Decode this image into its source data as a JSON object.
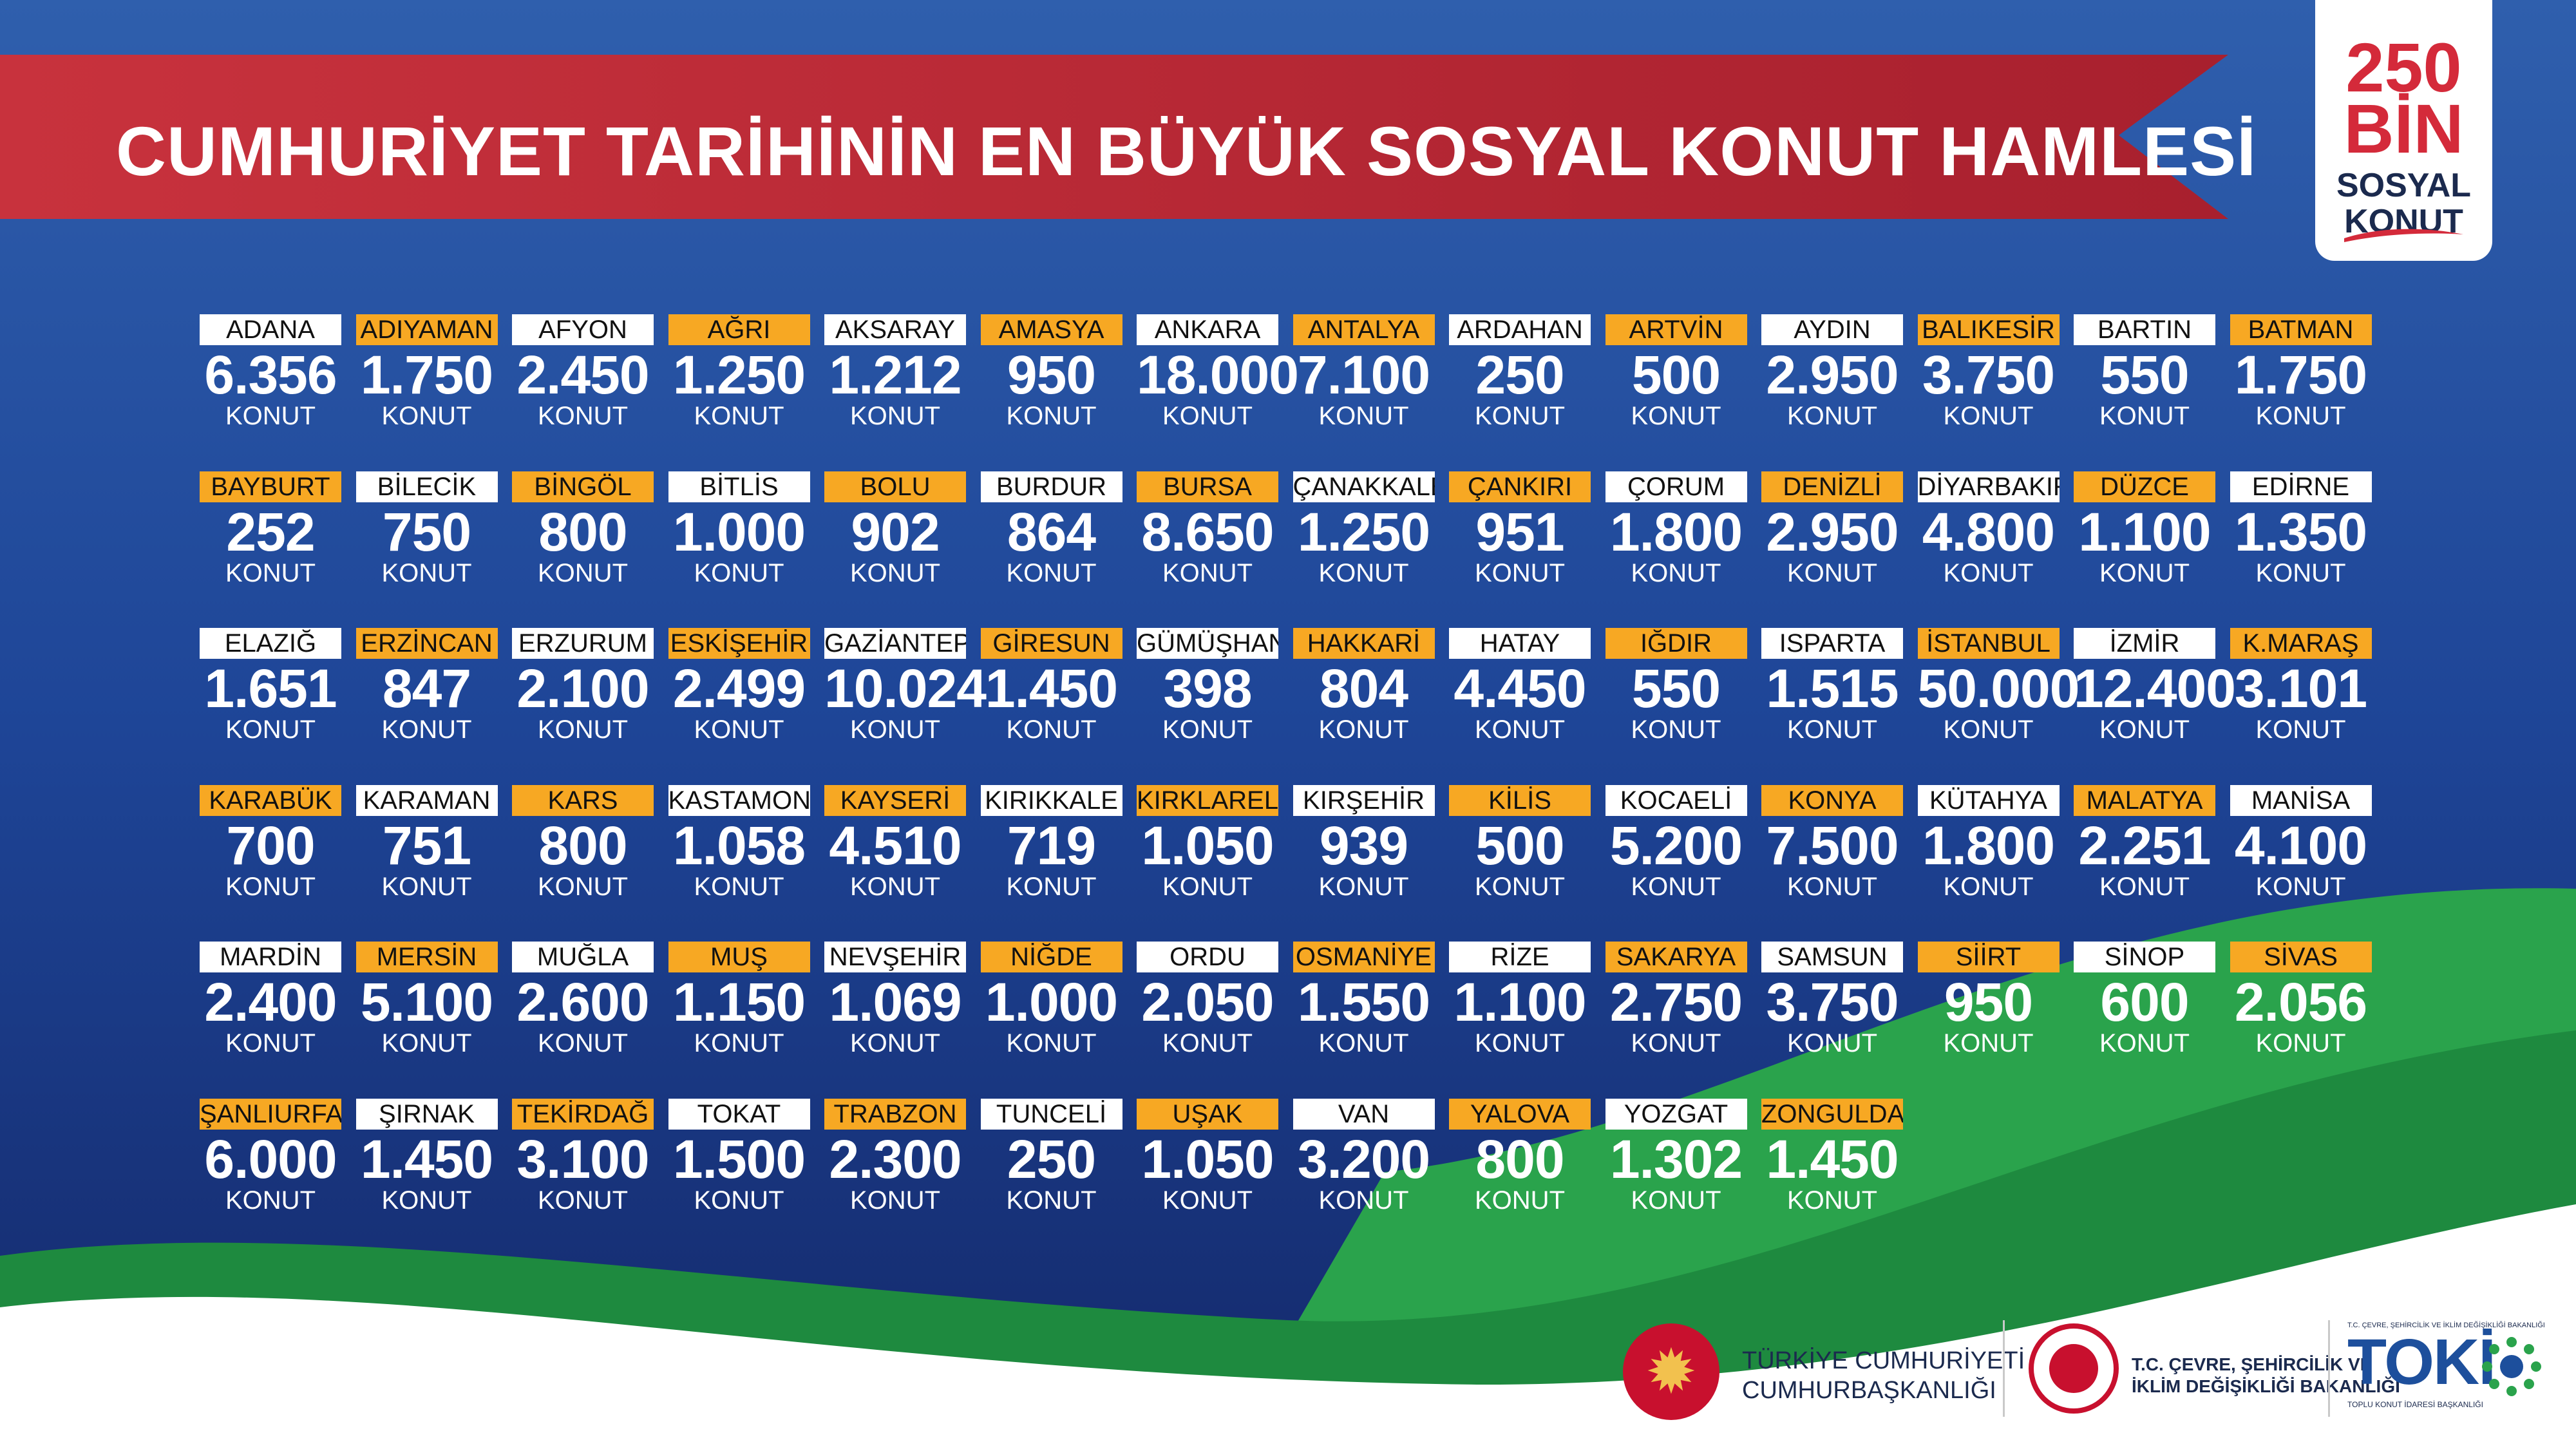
{
  "header": {
    "title": "CUMHURİYET TARİHİNİN EN BÜYÜK SOSYAL KONUT HAMLESİ"
  },
  "badge": {
    "line1": "250",
    "line2": "BİN",
    "line3": "SOSYAL",
    "line4": "KONUT"
  },
  "colors": {
    "background": "#1d3f93",
    "banner": "#c62f3b",
    "label_white": "#ffffff",
    "label_orange": "#f7a823",
    "green": "#2a9a4a"
  },
  "cities": [
    {
      "name": "ADANA",
      "value": "6.356",
      "unit": "KONUT",
      "tag": "w"
    },
    {
      "name": "ADIYAMAN",
      "value": "1.750",
      "unit": "KONUT",
      "tag": "o"
    },
    {
      "name": "AFYON",
      "value": "2.450",
      "unit": "KONUT",
      "tag": "w"
    },
    {
      "name": "AĞRI",
      "value": "1.250",
      "unit": "KONUT",
      "tag": "o"
    },
    {
      "name": "AKSARAY",
      "value": "1.212",
      "unit": "KONUT",
      "tag": "w"
    },
    {
      "name": "AMASYA",
      "value": "950",
      "unit": "KONUT",
      "tag": "o"
    },
    {
      "name": "ANKARA",
      "value": "18.000",
      "unit": "KONUT",
      "tag": "w"
    },
    {
      "name": "ANTALYA",
      "value": "7.100",
      "unit": "KONUT",
      "tag": "o"
    },
    {
      "name": "ARDAHAN",
      "value": "250",
      "unit": "KONUT",
      "tag": "w"
    },
    {
      "name": "ARTVİN",
      "value": "500",
      "unit": "KONUT",
      "tag": "o"
    },
    {
      "name": "AYDIN",
      "value": "2.950",
      "unit": "KONUT",
      "tag": "w"
    },
    {
      "name": "BALIKESİR",
      "value": "3.750",
      "unit": "KONUT",
      "tag": "o"
    },
    {
      "name": "BARTIN",
      "value": "550",
      "unit": "KONUT",
      "tag": "w"
    },
    {
      "name": "BATMAN",
      "value": "1.750",
      "unit": "KONUT",
      "tag": "o"
    },
    {
      "name": "BAYBURT",
      "value": "252",
      "unit": "KONUT",
      "tag": "o"
    },
    {
      "name": "BİLECİK",
      "value": "750",
      "unit": "KONUT",
      "tag": "w"
    },
    {
      "name": "BİNGÖL",
      "value": "800",
      "unit": "KONUT",
      "tag": "o"
    },
    {
      "name": "BİTLİS",
      "value": "1.000",
      "unit": "KONUT",
      "tag": "w"
    },
    {
      "name": "BOLU",
      "value": "902",
      "unit": "KONUT",
      "tag": "o"
    },
    {
      "name": "BURDUR",
      "value": "864",
      "unit": "KONUT",
      "tag": "w"
    },
    {
      "name": "BURSA",
      "value": "8.650",
      "unit": "KONUT",
      "tag": "o"
    },
    {
      "name": "ÇANAKKALE",
      "value": "1.250",
      "unit": "KONUT",
      "tag": "w"
    },
    {
      "name": "ÇANKIRI",
      "value": "951",
      "unit": "KONUT",
      "tag": "o"
    },
    {
      "name": "ÇORUM",
      "value": "1.800",
      "unit": "KONUT",
      "tag": "w"
    },
    {
      "name": "DENİZLİ",
      "value": "2.950",
      "unit": "KONUT",
      "tag": "o"
    },
    {
      "name": "DİYARBAKIR",
      "value": "4.800",
      "unit": "KONUT",
      "tag": "w"
    },
    {
      "name": "DÜZCE",
      "value": "1.100",
      "unit": "KONUT",
      "tag": "o"
    },
    {
      "name": "EDİRNE",
      "value": "1.350",
      "unit": "KONUT",
      "tag": "w"
    },
    {
      "name": "ELAZIĞ",
      "value": "1.651",
      "unit": "KONUT",
      "tag": "w"
    },
    {
      "name": "ERZİNCAN",
      "value": "847",
      "unit": "KONUT",
      "tag": "o"
    },
    {
      "name": "ERZURUM",
      "value": "2.100",
      "unit": "KONUT",
      "tag": "w"
    },
    {
      "name": "ESKİŞEHİR",
      "value": "2.499",
      "unit": "KONUT",
      "tag": "o"
    },
    {
      "name": "GAZİANTEP",
      "value": "10.024",
      "unit": "KONUT",
      "tag": "w"
    },
    {
      "name": "GİRESUN",
      "value": "1.450",
      "unit": "KONUT",
      "tag": "o"
    },
    {
      "name": "GÜMÜŞHANE",
      "value": "398",
      "unit": "KONUT",
      "tag": "w"
    },
    {
      "name": "HAKKARİ",
      "value": "804",
      "unit": "KONUT",
      "tag": "o"
    },
    {
      "name": "HATAY",
      "value": "4.450",
      "unit": "KONUT",
      "tag": "w"
    },
    {
      "name": "IĞDIR",
      "value": "550",
      "unit": "KONUT",
      "tag": "o"
    },
    {
      "name": "ISPARTA",
      "value": "1.515",
      "unit": "KONUT",
      "tag": "w"
    },
    {
      "name": "İSTANBUL",
      "value": "50.000",
      "unit": "KONUT",
      "tag": "o"
    },
    {
      "name": "İZMİR",
      "value": "12.400",
      "unit": "KONUT",
      "tag": "w"
    },
    {
      "name": "K.MARAŞ",
      "value": "3.101",
      "unit": "KONUT",
      "tag": "o"
    },
    {
      "name": "KARABÜK",
      "value": "700",
      "unit": "KONUT",
      "tag": "o"
    },
    {
      "name": "KARAMAN",
      "value": "751",
      "unit": "KONUT",
      "tag": "w"
    },
    {
      "name": "KARS",
      "value": "800",
      "unit": "KONUT",
      "tag": "o"
    },
    {
      "name": "KASTAMONU",
      "value": "1.058",
      "unit": "KONUT",
      "tag": "w"
    },
    {
      "name": "KAYSERİ",
      "value": "4.510",
      "unit": "KONUT",
      "tag": "o"
    },
    {
      "name": "KIRIKKALE",
      "value": "719",
      "unit": "KONUT",
      "tag": "w"
    },
    {
      "name": "KIRKLARELİ",
      "value": "1.050",
      "unit": "KONUT",
      "tag": "o"
    },
    {
      "name": "KIRŞEHİR",
      "value": "939",
      "unit": "KONUT",
      "tag": "w"
    },
    {
      "name": "KİLİS",
      "value": "500",
      "unit": "KONUT",
      "tag": "o"
    },
    {
      "name": "KOCAELİ",
      "value": "5.200",
      "unit": "KONUT",
      "tag": "w"
    },
    {
      "name": "KONYA",
      "value": "7.500",
      "unit": "KONUT",
      "tag": "o"
    },
    {
      "name": "KÜTAHYA",
      "value": "1.800",
      "unit": "KONUT",
      "tag": "w"
    },
    {
      "name": "MALATYA",
      "value": "2.251",
      "unit": "KONUT",
      "tag": "o"
    },
    {
      "name": "MANİSA",
      "value": "4.100",
      "unit": "KONUT",
      "tag": "w"
    },
    {
      "name": "MARDİN",
      "value": "2.400",
      "unit": "KONUT",
      "tag": "w"
    },
    {
      "name": "MERSİN",
      "value": "5.100",
      "unit": "KONUT",
      "tag": "o"
    },
    {
      "name": "MUĞLA",
      "value": "2.600",
      "unit": "KONUT",
      "tag": "w"
    },
    {
      "name": "MUŞ",
      "value": "1.150",
      "unit": "KONUT",
      "tag": "o"
    },
    {
      "name": "NEVŞEHİR",
      "value": "1.069",
      "unit": "KONUT",
      "tag": "w"
    },
    {
      "name": "NİĞDE",
      "value": "1.000",
      "unit": "KONUT",
      "tag": "o"
    },
    {
      "name": "ORDU",
      "value": "2.050",
      "unit": "KONUT",
      "tag": "w"
    },
    {
      "name": "OSMANİYE",
      "value": "1.550",
      "unit": "KONUT",
      "tag": "o"
    },
    {
      "name": "RİZE",
      "value": "1.100",
      "unit": "KONUT",
      "tag": "w"
    },
    {
      "name": "SAKARYA",
      "value": "2.750",
      "unit": "KONUT",
      "tag": "o"
    },
    {
      "name": "SAMSUN",
      "value": "3.750",
      "unit": "KONUT",
      "tag": "w"
    },
    {
      "name": "SİİRT",
      "value": "950",
      "unit": "KONUT",
      "tag": "o"
    },
    {
      "name": "SİNOP",
      "value": "600",
      "unit": "KONUT",
      "tag": "w"
    },
    {
      "name": "SİVAS",
      "value": "2.056",
      "unit": "KONUT",
      "tag": "o"
    },
    {
      "name": "ŞANLIURFA",
      "value": "6.000",
      "unit": "KONUT",
      "tag": "o"
    },
    {
      "name": "ŞIRNAK",
      "value": "1.450",
      "unit": "KONUT",
      "tag": "w"
    },
    {
      "name": "TEKİRDAĞ",
      "value": "3.100",
      "unit": "KONUT",
      "tag": "o"
    },
    {
      "name": "TOKAT",
      "value": "1.500",
      "unit": "KONUT",
      "tag": "w"
    },
    {
      "name": "TRABZON",
      "value": "2.300",
      "unit": "KONUT",
      "tag": "o"
    },
    {
      "name": "TUNCELİ",
      "value": "250",
      "unit": "KONUT",
      "tag": "w"
    },
    {
      "name": "UŞAK",
      "value": "1.050",
      "unit": "KONUT",
      "tag": "o"
    },
    {
      "name": "VAN",
      "value": "3.200",
      "unit": "KONUT",
      "tag": "w"
    },
    {
      "name": "YALOVA",
      "value": "800",
      "unit": "KONUT",
      "tag": "o"
    },
    {
      "name": "YOZGAT",
      "value": "1.302",
      "unit": "KONUT",
      "tag": "w"
    },
    {
      "name": "ZONGULDAK",
      "value": "1.450",
      "unit": "KONUT",
      "tag": "o"
    }
  ],
  "footer": {
    "presidency_line1": "TÜRKİYE CUMHURİYETİ",
    "presidency_line2": "CUMHURBAŞKANLIĞI",
    "ministry_line1": "T.C. ÇEVRE, ŞEHİRCİLİK VE",
    "ministry_line2": "İKLİM DEĞİŞİKLİĞİ BAKANLIĞI",
    "toki_small": "T.C. ÇEVRE, ŞEHİRCİLİK VE İKLİM DEĞİŞİKLİĞİ BAKANLIĞI",
    "toki_word": "TOKİ",
    "toki_sub": "TOPLU KONUT İDARESİ BAŞKANLIĞI"
  }
}
